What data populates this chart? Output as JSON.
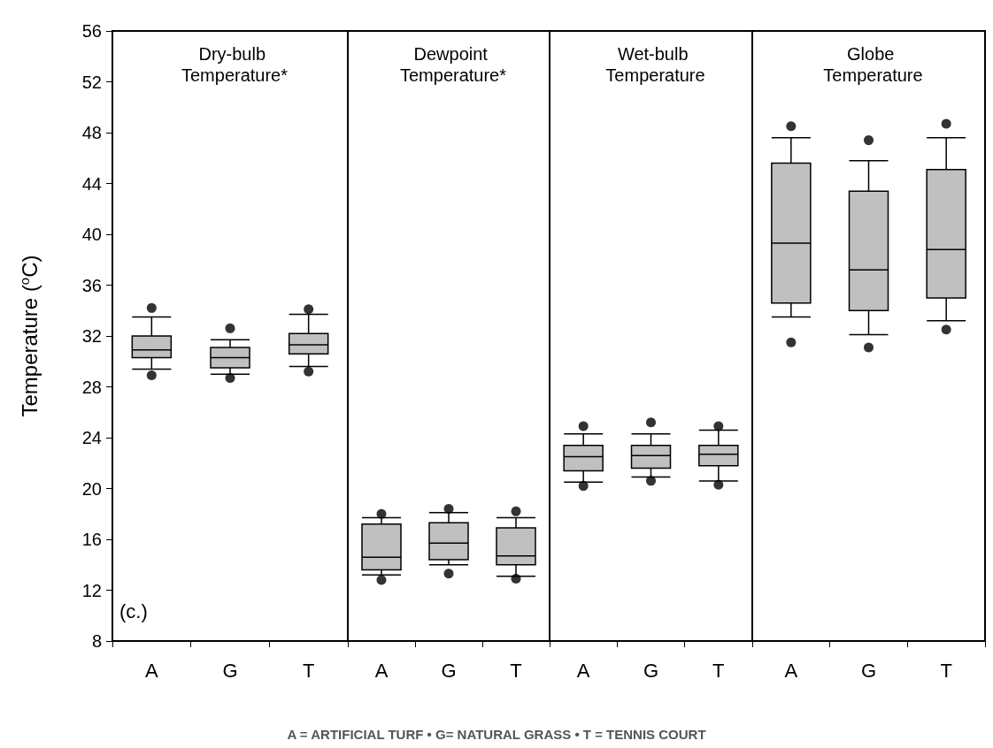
{
  "chart_data": [
    {
      "type": "box",
      "title": "Dry-bulb Temperature*",
      "ylabel": "Temperature ($^{o}$C)",
      "categories": [
        "A",
        "G",
        "T"
      ],
      "color": "#c0c0c0",
      "marker": "circle",
      "ylim": [
        8,
        56
      ],
      "yticks": [
        8,
        12,
        16,
        20,
        24,
        28,
        32,
        36,
        40,
        44,
        48,
        52,
        56
      ],
      "boxes": [
        {
          "low": 29.4,
          "q1": 30.3,
          "median": 30.9,
          "q3": 32.0,
          "high": 33.5,
          "outliers": [
            34.2,
            28.9
          ]
        },
        {
          "low": 29.0,
          "q1": 29.5,
          "median": 30.3,
          "q3": 31.1,
          "high": 31.7,
          "outliers": [
            32.6,
            28.7
          ]
        },
        {
          "low": 29.6,
          "q1": 30.6,
          "median": 31.3,
          "q3": 32.2,
          "high": 33.7,
          "outliers": [
            34.1,
            29.2
          ]
        }
      ],
      "annotations": [
        "(c.)",
        "A = ARTIFICIAL TURF • G= NATURAL GRASS • T = TENNIS COURT"
      ]
    },
    {
      "type": "box",
      "title": "Dewpoint Temperature*",
      "categories": [
        "A",
        "G",
        "T"
      ],
      "color": "#c0c0c0",
      "marker": "circle",
      "ylim": [
        8,
        56
      ],
      "tick_labels": "x",
      "boxes": [
        {
          "low": 13.2,
          "q1": 13.6,
          "median": 14.6,
          "q3": 17.2,
          "high": 17.7,
          "outliers": [
            18.0,
            12.8
          ]
        },
        {
          "low": 14.0,
          "q1": 14.4,
          "median": 15.7,
          "q3": 17.3,
          "high": 18.1,
          "outliers": [
            18.4,
            13.3
          ]
        },
        {
          "low": 13.1,
          "q1": 14.0,
          "median": 14.7,
          "q3": 16.9,
          "high": 17.7,
          "outliers": [
            18.2,
            12.9
          ]
        }
      ]
    },
    {
      "type": "box",
      "title": "Wet-bulb Temperature",
      "categories": [
        "A",
        "G",
        "T"
      ],
      "color": "#c0c0c0",
      "marker": "circle",
      "ylim": [
        8,
        56
      ],
      "tick_labels": "x",
      "boxes": [
        {
          "low": 20.5,
          "q1": 21.4,
          "median": 22.5,
          "q3": 23.4,
          "high": 24.3,
          "outliers": [
            24.9,
            20.2
          ]
        },
        {
          "low": 20.9,
          "q1": 21.6,
          "median": 22.6,
          "q3": 23.4,
          "high": 24.3,
          "outliers": [
            25.2,
            20.6
          ]
        },
        {
          "low": 20.6,
          "q1": 21.8,
          "median": 22.7,
          "q3": 23.4,
          "high": 24.6,
          "outliers": [
            24.9,
            20.3
          ]
        }
      ]
    },
    {
      "type": "box",
      "title": "Globe Temperature",
      "categories": [
        "A",
        "G",
        "T"
      ],
      "color": "#c0c0c0",
      "marker": "circle",
      "ylim": [
        8,
        56
      ],
      "tick_labels": "x",
      "boxes": [
        {
          "low": 33.5,
          "q1": 34.6,
          "median": 39.3,
          "q3": 45.6,
          "high": 47.6,
          "outliers": [
            48.5,
            31.5
          ]
        },
        {
          "low": 32.1,
          "q1": 34.0,
          "median": 37.2,
          "q3": 43.4,
          "high": 45.8,
          "outliers": [
            47.4,
            31.1
          ]
        },
        {
          "low": 33.2,
          "q1": 35.0,
          "median": 38.8,
          "q3": 45.1,
          "high": 47.6,
          "outliers": [
            48.7,
            32.5
          ]
        }
      ]
    }
  ]
}
